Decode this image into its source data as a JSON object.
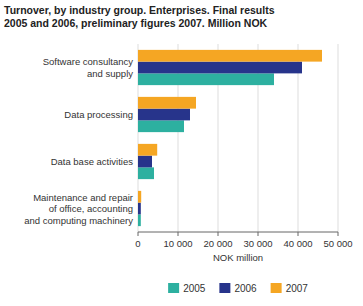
{
  "chart_data": {
    "type": "bar",
    "orientation": "horizontal",
    "title": "Turnover, by industry group. Enterprises. Final results\n2005 and 2006, preliminary figures 2007. Million NOK",
    "categories": [
      "Maintenance and repair\nof office, accounting\nand computing machinery",
      "Data base activities",
      "Data processing",
      "Software consultancy\nand supply"
    ],
    "series": [
      {
        "name": "2005",
        "color": "#2db0a0",
        "values": [
          700,
          4000,
          11500,
          34000
        ]
      },
      {
        "name": "2006",
        "color": "#27348b",
        "values": [
          700,
          3500,
          13000,
          41000
        ]
      },
      {
        "name": "2007",
        "color": "#f5a623",
        "values": [
          800,
          4800,
          14500,
          46000
        ]
      }
    ],
    "xlabel": "NOK million",
    "xlim": [
      0,
      50000
    ],
    "xticks": [
      0,
      {
        "value": 10000,
        "label": "10 000"
      },
      {
        "value": 20000,
        "label": "20 000"
      },
      {
        "value": 30000,
        "label": "30 000"
      },
      {
        "value": 40000,
        "label": "40 000"
      },
      {
        "value": 50000,
        "label": "50 000"
      }
    ],
    "grid": true,
    "legend": "bottom"
  }
}
